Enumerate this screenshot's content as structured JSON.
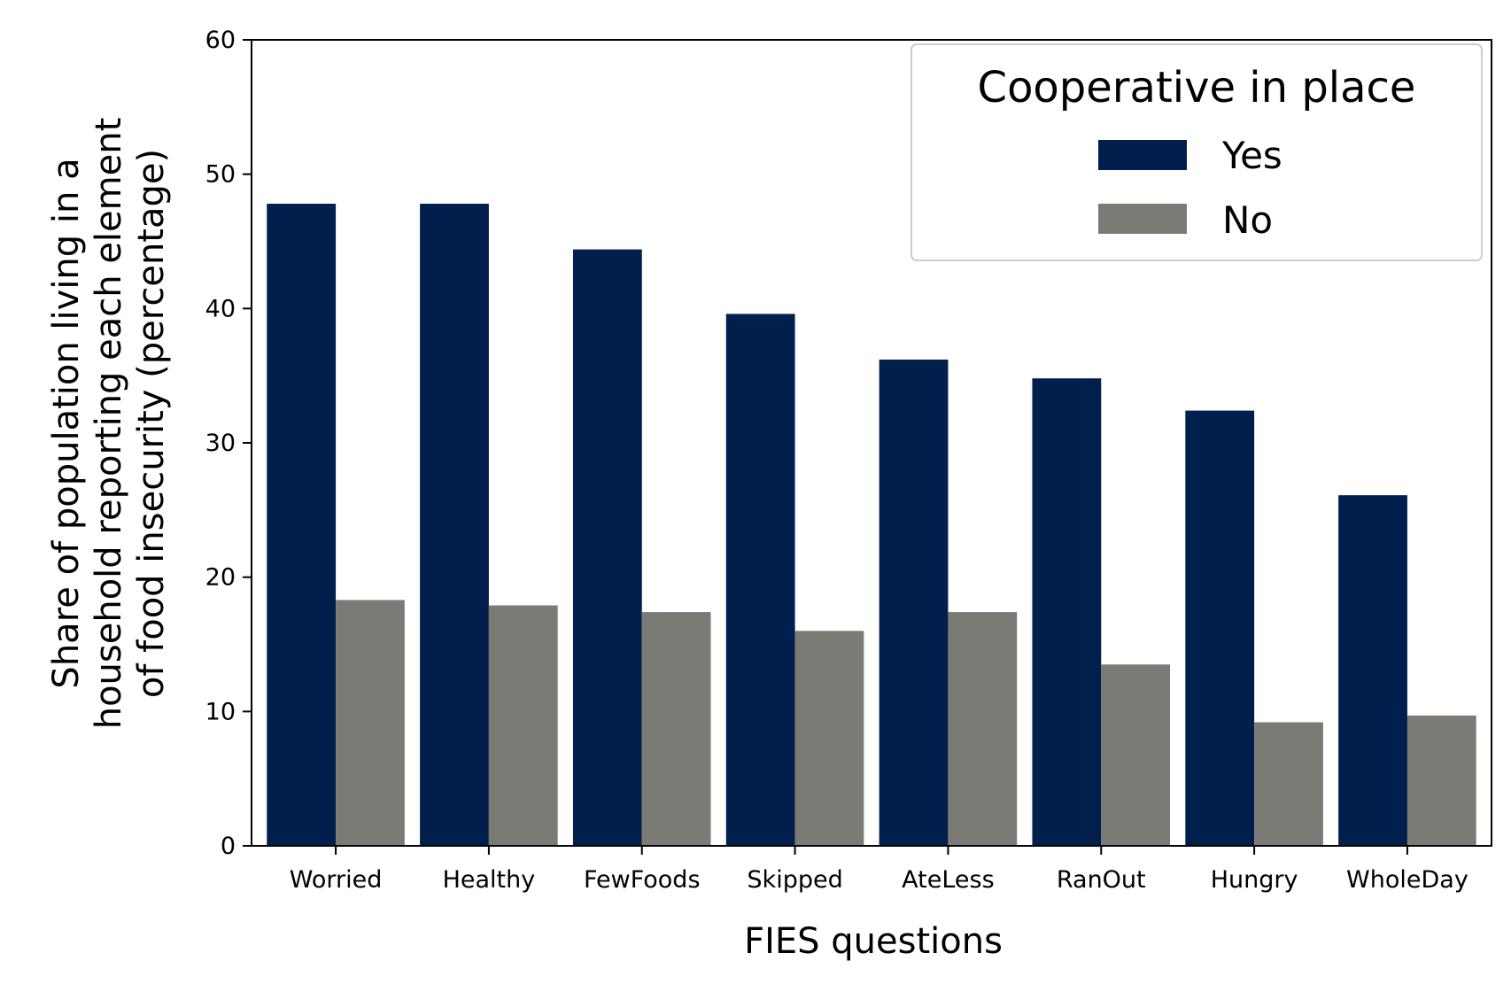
{
  "chart_data": {
    "type": "bar",
    "title": "",
    "xlabel": "FIES questions",
    "ylabel_lines": [
      "Share of population living in a",
      "household reporting each element",
      "of food insecurity (percentage)"
    ],
    "ylim": [
      0,
      60
    ],
    "yticks": [
      0,
      10,
      20,
      30,
      40,
      50,
      60
    ],
    "ytick_labels": [
      "0",
      "10",
      "20",
      "30",
      "40",
      "50",
      "60"
    ],
    "categories": [
      "Worried",
      "Healthy",
      "FewFoods",
      "Skipped",
      "AteLess",
      "RanOut",
      "Hungry",
      "WholeDay"
    ],
    "series": [
      {
        "name": "Yes",
        "color": "#001f4d",
        "values": [
          47.8,
          47.8,
          44.4,
          39.6,
          36.2,
          34.8,
          32.4,
          26.1
        ]
      },
      {
        "name": "No",
        "color": "#7b7b76",
        "values": [
          18.3,
          17.9,
          17.4,
          16.0,
          17.4,
          13.5,
          9.2,
          9.7
        ]
      }
    ],
    "legend": {
      "title": "Cooperative in place",
      "placement": "top-right"
    },
    "grid": false
  }
}
